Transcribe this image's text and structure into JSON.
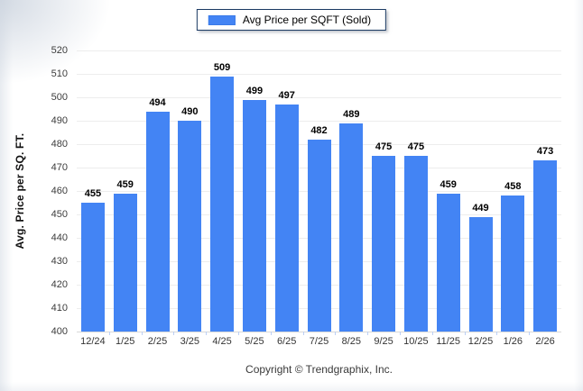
{
  "legend": {
    "label": "Avg Price per SQFT (Sold)",
    "swatch_color": "#4384F4"
  },
  "footer": {
    "copyright": "Copyright © Trendgraphix, Inc."
  },
  "chart_data": {
    "type": "bar",
    "title": "",
    "xlabel": "",
    "ylabel": "Avg. Price per SQ. FT.",
    "categories": [
      "12/24",
      "1/25",
      "2/25",
      "3/25",
      "4/25",
      "5/25",
      "6/25",
      "7/25",
      "8/25",
      "9/25",
      "10/25",
      "11/25",
      "12/25",
      "1/26",
      "2/26"
    ],
    "series": [
      {
        "name": "Avg Price per SQFT (Sold)",
        "values": [
          455,
          459,
          494,
          490,
          509,
          499,
          497,
          482,
          489,
          475,
          475,
          459,
          449,
          458,
          473
        ]
      }
    ],
    "ylim": [
      400,
      520
    ],
    "ytick_step": 10,
    "grid": true,
    "value_labels": true,
    "legend_position": "top-center",
    "bar_color": "#4384F4",
    "gridline_color": "#ededed"
  }
}
